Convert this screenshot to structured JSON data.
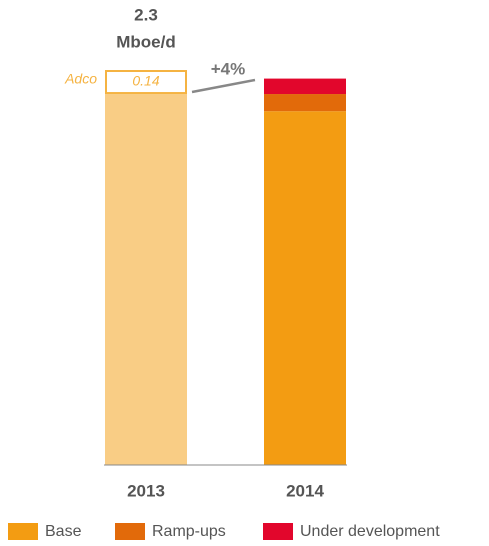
{
  "chart_data": {
    "type": "stacked_bar",
    "categories": [
      "2013",
      "2014"
    ],
    "series": [
      {
        "name": "Base",
        "color": "#f39c12",
        "colors": [
          "#f9cd85",
          "#f39c12"
        ],
        "values": [
          2.16,
          2.06
        ]
      },
      {
        "name": "Ramp-ups",
        "color": "#e26a0a",
        "values": [
          0,
          0.1
        ]
      },
      {
        "name": "Under development",
        "color": "#e2062c",
        "values": [
          0,
          0.09
        ]
      }
    ],
    "adco": {
      "label": "Adco",
      "category": 0,
      "value": 0.14,
      "value_label": "0.14",
      "color": "#f5b342"
    },
    "total": {
      "value": 2.3,
      "label": "2.3"
    },
    "unit": "Mboe/d",
    "change_label": "+4%",
    "ylim": [
      0,
      2.3
    ]
  }
}
